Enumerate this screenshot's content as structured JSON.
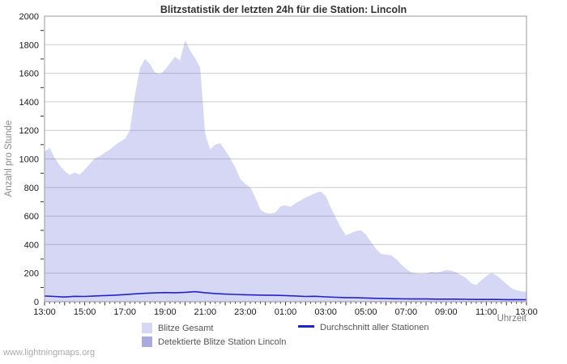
{
  "title": "Blitzstatistik der letzten 24h für die Station: Lincoln",
  "watermark": "www.lightningmaps.org",
  "colors": {
    "total_fill": "#d6d6f5",
    "station_fill": "#aaaae0",
    "avg_line": "#2323cc",
    "grid": "rgba(120,120,120,0.38)",
    "frame": "#9a9a9a",
    "tick": "#333333",
    "tick_label": "#1a1a1a"
  },
  "chart_data": {
    "type": "area",
    "title": "Blitzstatistik der letzten 24h für die Station: Lincoln",
    "xlabel": "Uhrzeit",
    "ylabel": "Anzahl pro Stunde",
    "ylim": [
      0,
      2000
    ],
    "y_tick_step": 200,
    "y_tick_labels": [
      "0",
      "200",
      "400",
      "600",
      "800",
      "1000",
      "1200",
      "1400",
      "1600",
      "1800",
      "2000"
    ],
    "x_hours_span": 24,
    "x_tick_labels": [
      "13:00",
      "15:00",
      "17:00",
      "19:00",
      "21:00",
      "23:00",
      "01:00",
      "03:00",
      "05:00",
      "07:00",
      "09:00",
      "11:00",
      "13:00"
    ],
    "grid": "horizontal",
    "legend_position": "bottom",
    "series": [
      {
        "name": "Blitze Gesamt",
        "type": "area",
        "color": "#d6d6f5",
        "interval_minutes": 15,
        "values": [
          1050,
          1078,
          1010,
          955,
          915,
          888,
          905,
          890,
          925,
          965,
          1005,
          1020,
          1045,
          1065,
          1095,
          1120,
          1140,
          1200,
          1450,
          1635,
          1700,
          1665,
          1605,
          1595,
          1625,
          1670,
          1715,
          1690,
          1830,
          1760,
          1705,
          1640,
          1175,
          1065,
          1100,
          1110,
          1060,
          1005,
          940,
          860,
          825,
          800,
          730,
          645,
          622,
          618,
          625,
          668,
          675,
          665,
          690,
          710,
          730,
          745,
          762,
          772,
          740,
          660,
          590,
          520,
          465,
          480,
          495,
          500,
          470,
          420,
          370,
          335,
          330,
          325,
          300,
          262,
          230,
          207,
          200,
          196,
          198,
          210,
          205,
          210,
          222,
          218,
          205,
          185,
          165,
          130,
          116,
          150,
          180,
          200,
          185,
          155,
          125,
          95,
          80,
          73,
          70
        ]
      },
      {
        "name": "Detektierte Blitze Station Lincoln",
        "type": "area",
        "color": "#aaaae0",
        "interval_minutes": 60,
        "values": [
          0,
          0,
          0,
          0,
          0,
          0,
          0,
          0,
          0,
          0,
          0,
          0,
          0,
          0,
          0,
          0,
          0,
          0,
          0,
          0,
          0,
          0,
          0,
          0,
          0
        ]
      },
      {
        "name": "Durchschnitt aller Stationen",
        "type": "line",
        "color": "#2323cc",
        "interval_minutes": 30,
        "values": [
          40,
          37,
          33,
          38,
          37,
          40,
          43,
          46,
          50,
          55,
          59,
          62,
          64,
          63,
          66,
          70,
          63,
          57,
          53,
          51,
          49,
          47,
          46,
          45,
          43,
          40,
          37,
          38,
          34,
          31,
          29,
          28,
          26,
          24,
          22,
          21,
          20,
          19,
          19,
          18,
          18,
          18,
          17,
          16,
          16,
          16,
          15,
          15,
          14
        ]
      }
    ]
  }
}
